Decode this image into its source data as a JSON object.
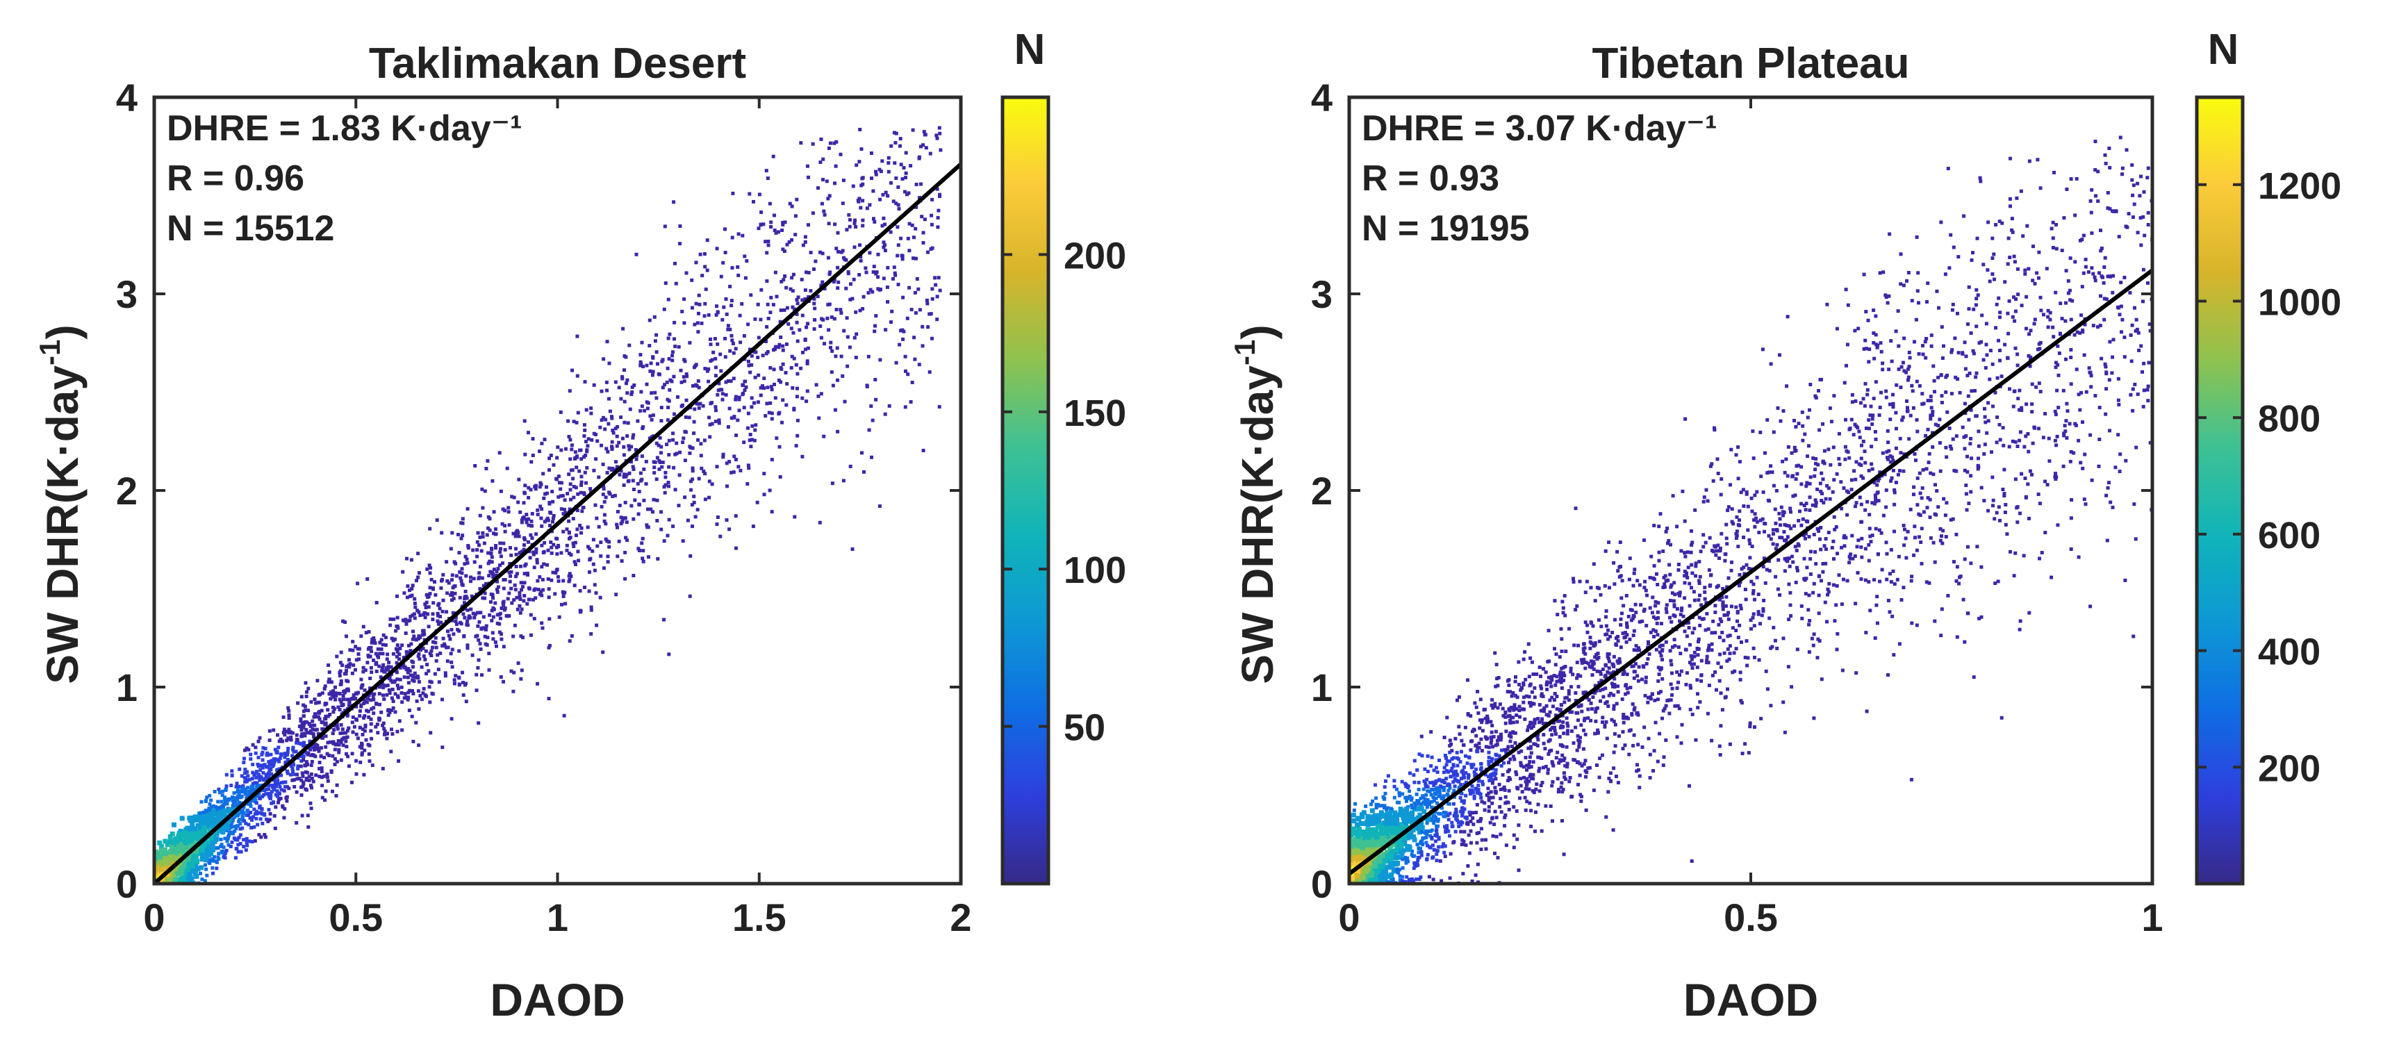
{
  "chart_data": [
    {
      "type": "scatter",
      "density_colored": true,
      "title": "Taklimakan Desert",
      "xlabel": "DAOD",
      "ylabel": "SW DHR(K·day",
      "ylabel_exponent": "-1",
      "ylabel_close": ")",
      "xlim": [
        0,
        2
      ],
      "ylim": [
        0,
        4
      ],
      "xticks": [
        0,
        0.5,
        1,
        1.5,
        2
      ],
      "xtick_labels": [
        "0",
        "0.5",
        "1",
        "1.5",
        "2"
      ],
      "yticks": [
        0,
        1,
        2,
        3,
        4
      ],
      "ytick_labels": [
        "0",
        "1",
        "2",
        "3",
        "4"
      ],
      "annotations": [
        "DHRE = 1.83 K·day⁻¹",
        "R = 0.96",
        "N = 15512"
      ],
      "fit_line": {
        "slope": 1.83,
        "intercept": 0.0,
        "x": [
          0,
          2
        ]
      },
      "scatter_spread": {
        "x_max": 1.95,
        "y_max": 3.85,
        "relative_noise": 0.13,
        "absolute_noise": 0.06
      },
      "colorbar": {
        "label": "N",
        "range": [
          0,
          250
        ],
        "ticks": [
          50,
          100,
          150,
          200
        ],
        "tick_labels": [
          "50",
          "100",
          "150",
          "200"
        ]
      }
    },
    {
      "type": "scatter",
      "density_colored": true,
      "title": "Tibetan Plateau",
      "xlabel": "DAOD",
      "ylabel": "SW DHR(K·day",
      "ylabel_exponent": "-1",
      "ylabel_close": ")",
      "xlim": [
        0,
        1
      ],
      "ylim": [
        0,
        4
      ],
      "xticks": [
        0,
        0.5,
        1
      ],
      "xtick_labels": [
        "0",
        "0.5",
        "1"
      ],
      "yticks": [
        0,
        1,
        2,
        3,
        4
      ],
      "ytick_labels": [
        "0",
        "1",
        "2",
        "3",
        "4"
      ],
      "annotations": [
        "DHRE = 3.07 K·day⁻¹",
        "R = 0.93",
        "N = 19195"
      ],
      "fit_line": {
        "slope": 3.07,
        "intercept": 0.05,
        "x": [
          0,
          1
        ]
      },
      "scatter_spread": {
        "x_max": 1.0,
        "y_max": 3.8,
        "relative_noise": 0.18,
        "absolute_noise": 0.1
      },
      "colorbar": {
        "label": "N",
        "range": [
          0,
          1350
        ],
        "ticks": [
          200,
          400,
          600,
          800,
          1000,
          1200
        ],
        "tick_labels": [
          "200",
          "400",
          "600",
          "800",
          "1000",
          "1200"
        ]
      }
    }
  ],
  "colors": {
    "low_density": "#3e26a8",
    "colormap": [
      "#352a87",
      "#2e3fde",
      "#0f6ee3",
      "#0d99d4",
      "#10b4b8",
      "#3ec193",
      "#8fc24f",
      "#d7b42a",
      "#fbcb3a",
      "#f9fb0e"
    ],
    "fit_line": "#000000",
    "axis": "#2b2b2b",
    "text": "#222222"
  }
}
